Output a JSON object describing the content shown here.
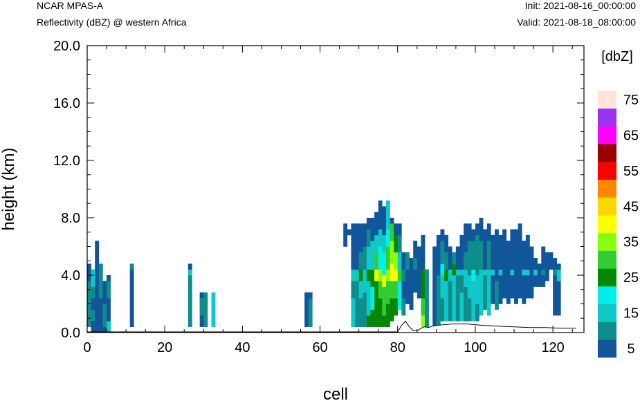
{
  "header": {
    "model": "NCAR MPAS-A",
    "field": "Reflectivity (dBZ) @ western Africa",
    "init": "Init: 2021-08-16_00:00:00",
    "valid": "Valid: 2021-08-18_08:00:00"
  },
  "chart_data": {
    "type": "heatmap",
    "xlabel": "cell",
    "ylabel": "height (km)",
    "xlim": [
      0,
      128
    ],
    "ylim": [
      0,
      20
    ],
    "xticks": [
      0,
      20,
      40,
      60,
      80,
      100,
      120
    ],
    "xtick_labels": [
      "0",
      "20",
      "40",
      "60",
      "80",
      "100",
      "120"
    ],
    "yticks": [
      0,
      4,
      8,
      12,
      16,
      20
    ],
    "ytick_labels": [
      "0.0",
      "4.0",
      "8.0",
      "12.0",
      "16.0",
      "20.0"
    ],
    "colorbar": {
      "title": "[dbZ]",
      "levels": [
        5,
        10,
        15,
        20,
        25,
        30,
        35,
        40,
        45,
        50,
        55,
        60,
        65,
        70,
        75
      ],
      "tick_labels": [
        "5",
        "15",
        "25",
        "35",
        "45",
        "55",
        "65",
        "75"
      ],
      "colors": [
        "#11559a",
        "#0f8d8d",
        "#11c8c8",
        "#00eeee",
        "#008800",
        "#33cc33",
        "#88ff11",
        "#ffff00",
        "#ffd700",
        "#ff8800",
        "#ff0000",
        "#990000",
        "#ff00ff",
        "#9933ee",
        "#ffe4da"
      ]
    },
    "cell_size": [
      1,
      0.4
    ],
    "cells": [
      [
        0,
        0.4,
        3.6,
        1
      ],
      [
        0,
        3.6,
        4.8,
        0
      ],
      [
        1,
        0,
        0.8,
        0
      ],
      [
        1,
        0.8,
        1.6,
        1
      ],
      [
        1,
        1.6,
        2.4,
        0
      ],
      [
        1,
        2.4,
        3.2,
        1
      ],
      [
        1,
        3.2,
        4.4,
        2
      ],
      [
        2,
        0,
        4.8,
        0
      ],
      [
        2,
        4.8,
        6.4,
        0
      ],
      [
        3,
        0,
        0.8,
        0
      ],
      [
        3,
        0.8,
        2.4,
        0
      ],
      [
        3,
        2.4,
        4.8,
        1
      ],
      [
        4,
        0,
        0.4,
        0
      ],
      [
        4,
        0.4,
        2,
        1
      ],
      [
        4,
        2,
        3.6,
        0
      ],
      [
        5,
        0,
        0.8,
        2
      ],
      [
        5,
        0.8,
        2.4,
        0
      ],
      [
        5,
        2.4,
        3.6,
        1
      ],
      [
        5,
        3.6,
        4.0,
        0
      ],
      [
        11,
        0.4,
        4.4,
        0
      ],
      [
        11,
        4.4,
        4.8,
        1
      ],
      [
        26,
        0.4,
        4.0,
        1
      ],
      [
        26,
        4.0,
        4.4,
        2
      ],
      [
        26,
        4.4,
        4.8,
        0
      ],
      [
        29,
        0.4,
        2.8,
        0
      ],
      [
        29,
        1.2,
        2.4,
        1
      ],
      [
        30,
        0.4,
        2.8,
        1
      ],
      [
        32,
        0.4,
        2.8,
        2
      ],
      [
        56,
        0.4,
        2.8,
        0
      ],
      [
        57,
        0.4,
        2.4,
        1
      ],
      [
        57,
        2.4,
        2.8,
        0
      ],
      [
        66,
        6.0,
        7.6,
        0
      ],
      [
        67,
        6.8,
        7.2,
        0
      ],
      [
        68,
        0.4,
        2.4,
        2
      ],
      [
        68,
        2.4,
        3.6,
        1
      ],
      [
        68,
        3.6,
        4.4,
        2
      ],
      [
        68,
        4.4,
        6.0,
        0
      ],
      [
        68,
        6.0,
        7.6,
        0
      ],
      [
        69,
        0.4,
        3.6,
        1
      ],
      [
        69,
        3.6,
        4.4,
        2
      ],
      [
        69,
        4.4,
        7.6,
        0
      ],
      [
        70,
        0.4,
        2.4,
        1
      ],
      [
        70,
        2.4,
        3.6,
        2
      ],
      [
        70,
        3.6,
        4.4,
        4
      ],
      [
        70,
        4.4,
        5.6,
        1
      ],
      [
        70,
        5.6,
        7.6,
        0
      ],
      [
        71,
        0.4,
        2.8,
        1
      ],
      [
        71,
        2.8,
        4.4,
        2
      ],
      [
        71,
        4.4,
        6.0,
        1
      ],
      [
        71,
        6.0,
        7.6,
        0
      ],
      [
        72,
        0.4,
        1.2,
        4
      ],
      [
        72,
        1.2,
        3.6,
        2
      ],
      [
        72,
        3.6,
        4.4,
        4
      ],
      [
        72,
        4.4,
        6.0,
        2
      ],
      [
        72,
        6.0,
        7.2,
        1
      ],
      [
        72,
        7.2,
        8.0,
        0
      ],
      [
        73,
        0.4,
        1.6,
        4
      ],
      [
        73,
        1.6,
        3.2,
        3
      ],
      [
        73,
        3.2,
        4.4,
        4
      ],
      [
        73,
        4.4,
        6.4,
        2
      ],
      [
        73,
        6.4,
        8.0,
        0
      ],
      [
        74,
        0.4,
        1.2,
        4
      ],
      [
        74,
        1.2,
        3.6,
        4
      ],
      [
        74,
        3.6,
        4.4,
        7
      ],
      [
        74,
        4.4,
        5.6,
        5
      ],
      [
        74,
        5.6,
        6.8,
        2
      ],
      [
        74,
        6.8,
        8.4,
        0
      ],
      [
        75,
        0.4,
        2.4,
        4
      ],
      [
        75,
        2.4,
        3.6,
        5
      ],
      [
        75,
        3.6,
        4.4,
        6
      ],
      [
        75,
        4.4,
        6.0,
        3
      ],
      [
        75,
        6.0,
        7.2,
        2
      ],
      [
        75,
        7.2,
        9.2,
        0
      ],
      [
        76,
        0.4,
        1.2,
        4
      ],
      [
        76,
        1.2,
        3.2,
        5
      ],
      [
        76,
        3.2,
        4.0,
        7
      ],
      [
        76,
        4.0,
        5.6,
        3
      ],
      [
        76,
        5.6,
        6.8,
        2
      ],
      [
        76,
        6.8,
        8.8,
        0
      ],
      [
        77,
        0.4,
        2.0,
        4
      ],
      [
        77,
        2.0,
        3.6,
        5
      ],
      [
        77,
        3.6,
        4.4,
        6
      ],
      [
        77,
        4.4,
        6.0,
        5
      ],
      [
        77,
        6.0,
        7.2,
        3
      ],
      [
        77,
        7.2,
        9.2,
        2
      ],
      [
        78,
        0.8,
        2.4,
        4
      ],
      [
        78,
        2.4,
        3.6,
        5
      ],
      [
        78,
        3.6,
        4.8,
        7
      ],
      [
        78,
        4.8,
        6.4,
        6
      ],
      [
        78,
        6.4,
        7.6,
        5
      ],
      [
        78,
        7.6,
        8.0,
        0
      ],
      [
        79,
        1.2,
        2.4,
        4
      ],
      [
        79,
        2.4,
        3.6,
        5
      ],
      [
        79,
        3.6,
        4.4,
        7
      ],
      [
        79,
        4.4,
        5.6,
        6
      ],
      [
        79,
        5.6,
        6.8,
        4
      ],
      [
        79,
        6.8,
        7.6,
        0
      ],
      [
        80,
        1.6,
        3.6,
        3
      ],
      [
        80,
        3.6,
        4.4,
        5
      ],
      [
        80,
        4.4,
        5.6,
        2
      ],
      [
        80,
        5.6,
        6.8,
        1
      ],
      [
        80,
        6.8,
        7.6,
        0
      ],
      [
        81,
        1.2,
        2.4,
        1
      ],
      [
        81,
        2.4,
        3.6,
        0
      ],
      [
        81,
        3.6,
        4.4,
        1
      ],
      [
        81,
        4.4,
        5.6,
        0
      ],
      [
        82,
        2.0,
        4.4,
        0
      ],
      [
        82,
        4.4,
        5.6,
        1
      ],
      [
        83,
        1.6,
        4.4,
        0
      ],
      [
        83,
        4.4,
        5.2,
        0
      ],
      [
        84,
        2.8,
        4.4,
        0
      ],
      [
        84,
        4.4,
        5.2,
        1
      ],
      [
        84,
        5.2,
        6.4,
        0
      ],
      [
        85,
        2.4,
        4.8,
        0
      ],
      [
        85,
        4.8,
        6.0,
        0
      ],
      [
        86,
        0.4,
        1.2,
        6
      ],
      [
        86,
        1.2,
        2.4,
        5
      ],
      [
        86,
        2.4,
        4.4,
        4
      ],
      [
        86,
        4.4,
        6.8,
        0
      ],
      [
        87,
        0.4,
        3.6,
        1
      ],
      [
        87,
        3.6,
        4.4,
        1
      ],
      [
        89,
        0.4,
        4.4,
        0
      ],
      [
        89,
        4.4,
        6.0,
        0
      ],
      [
        90,
        0.4,
        4.0,
        1
      ],
      [
        90,
        4.0,
        6.8,
        0
      ],
      [
        91,
        0.8,
        2.4,
        1
      ],
      [
        91,
        2.4,
        4.0,
        2
      ],
      [
        91,
        4.0,
        4.8,
        3
      ],
      [
        91,
        4.8,
        6.4,
        1
      ],
      [
        91,
        6.4,
        7.2,
        0
      ],
      [
        92,
        0.8,
        3.6,
        2
      ],
      [
        92,
        3.6,
        4.4,
        4
      ],
      [
        92,
        4.4,
        5.6,
        1
      ],
      [
        92,
        5.6,
        6.8,
        0
      ],
      [
        93,
        0.8,
        3.6,
        1
      ],
      [
        93,
        3.6,
        4.4,
        2
      ],
      [
        93,
        4.4,
        6.0,
        0
      ],
      [
        94,
        0.8,
        4.0,
        2
      ],
      [
        94,
        4.0,
        4.8,
        4
      ],
      [
        94,
        4.8,
        5.6,
        1
      ],
      [
        95,
        0.8,
        4.0,
        1
      ],
      [
        95,
        4.0,
        4.4,
        2
      ],
      [
        95,
        4.4,
        6.0,
        0
      ],
      [
        96,
        0.8,
        2.8,
        2
      ],
      [
        96,
        2.8,
        4.0,
        1
      ],
      [
        96,
        4.0,
        4.4,
        2
      ],
      [
        96,
        4.4,
        6.8,
        0
      ],
      [
        97,
        0.8,
        3.2,
        1
      ],
      [
        97,
        3.2,
        4.4,
        2
      ],
      [
        97,
        4.4,
        5.6,
        1
      ],
      [
        97,
        5.6,
        7.6,
        0
      ],
      [
        98,
        0.8,
        2.4,
        1
      ],
      [
        98,
        2.4,
        4.0,
        2
      ],
      [
        98,
        4.0,
        6.4,
        1
      ],
      [
        98,
        6.4,
        7.6,
        0
      ],
      [
        99,
        0.8,
        3.6,
        2
      ],
      [
        99,
        3.6,
        4.4,
        3
      ],
      [
        99,
        4.4,
        6.4,
        1
      ],
      [
        99,
        6.4,
        7.2,
        0
      ],
      [
        100,
        0.8,
        2.0,
        1
      ],
      [
        100,
        2.0,
        4.0,
        2
      ],
      [
        100,
        4.0,
        6.8,
        1
      ],
      [
        100,
        6.8,
        7.6,
        0
      ],
      [
        101,
        1.2,
        3.6,
        2
      ],
      [
        101,
        3.6,
        4.4,
        2
      ],
      [
        101,
        4.4,
        6.4,
        1
      ],
      [
        101,
        6.4,
        8.0,
        0
      ],
      [
        102,
        1.6,
        4.0,
        1
      ],
      [
        102,
        4.0,
        4.4,
        2
      ],
      [
        102,
        4.4,
        7.2,
        0
      ],
      [
        103,
        1.2,
        3.6,
        2
      ],
      [
        103,
        3.6,
        4.4,
        2
      ],
      [
        103,
        4.4,
        6.4,
        1
      ],
      [
        103,
        6.4,
        7.6,
        0
      ],
      [
        104,
        2.0,
        4.0,
        0
      ],
      [
        104,
        4.0,
        4.4,
        2
      ],
      [
        104,
        4.4,
        6.8,
        0
      ],
      [
        105,
        1.6,
        3.6,
        1
      ],
      [
        105,
        3.6,
        4.4,
        0
      ],
      [
        105,
        4.4,
        7.2,
        0
      ],
      [
        106,
        2.0,
        4.0,
        0
      ],
      [
        106,
        4.0,
        4.4,
        2
      ],
      [
        106,
        4.4,
        6.8,
        0
      ],
      [
        107,
        2.4,
        4.0,
        0
      ],
      [
        107,
        4.0,
        4.4,
        0
      ],
      [
        107,
        4.4,
        7.2,
        0
      ],
      [
        108,
        2.0,
        4.4,
        0
      ],
      [
        108,
        4.4,
        6.4,
        0
      ],
      [
        109,
        2.4,
        4.0,
        0
      ],
      [
        109,
        4.0,
        4.4,
        2
      ],
      [
        109,
        4.4,
        7.2,
        0
      ],
      [
        110,
        2.0,
        4.0,
        0
      ],
      [
        110,
        4.0,
        7.2,
        0
      ],
      [
        111,
        2.4,
        4.0,
        0
      ],
      [
        111,
        4.0,
        4.4,
        0
      ],
      [
        111,
        4.4,
        7.6,
        0
      ],
      [
        112,
        2.0,
        4.0,
        0
      ],
      [
        112,
        4.0,
        4.4,
        2
      ],
      [
        112,
        4.4,
        6.4,
        0
      ],
      [
        113,
        2.4,
        4.0,
        0
      ],
      [
        113,
        4.0,
        4.4,
        2
      ],
      [
        113,
        4.4,
        6.8,
        0
      ],
      [
        114,
        2.4,
        4.8,
        0
      ],
      [
        114,
        4.8,
        6.0,
        0
      ],
      [
        115,
        3.2,
        4.0,
        0
      ],
      [
        115,
        4.0,
        4.4,
        2
      ],
      [
        115,
        4.4,
        5.2,
        0
      ],
      [
        116,
        3.2,
        4.8,
        0
      ],
      [
        117,
        3.2,
        4.0,
        0
      ],
      [
        117,
        4.0,
        4.4,
        1
      ],
      [
        117,
        4.4,
        6.0,
        0
      ],
      [
        118,
        3.6,
        4.8,
        0
      ],
      [
        118,
        4.8,
        5.6,
        0
      ],
      [
        119,
        4.4,
        5.6,
        0
      ],
      [
        120,
        1.2,
        4.0,
        0
      ],
      [
        120,
        4.0,
        4.4,
        1
      ],
      [
        120,
        4.4,
        5.2,
        0
      ],
      [
        121,
        1.2,
        3.6,
        0
      ],
      [
        121,
        3.6,
        4.4,
        2
      ],
      [
        121,
        4.4,
        4.8,
        0
      ]
    ],
    "ground": [
      [
        0,
        0.05
      ],
      [
        80,
        0.05
      ],
      [
        81,
        0.5
      ],
      [
        82,
        0.8
      ],
      [
        83,
        0.4
      ],
      [
        84,
        0.15
      ],
      [
        85,
        0.1
      ],
      [
        86,
        0.3
      ],
      [
        87,
        0.4
      ],
      [
        88,
        0.35
      ],
      [
        89,
        0.45
      ],
      [
        90,
        0.5
      ],
      [
        94,
        0.6
      ],
      [
        98,
        0.6
      ],
      [
        102,
        0.5
      ],
      [
        106,
        0.45
      ],
      [
        110,
        0.4
      ],
      [
        114,
        0.35
      ],
      [
        118,
        0.35
      ],
      [
        122,
        0.3
      ],
      [
        126,
        0.3
      ]
    ]
  }
}
